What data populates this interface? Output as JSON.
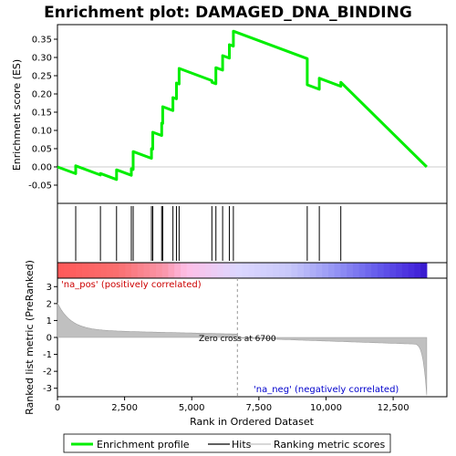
{
  "chart_data": {
    "type": "line",
    "title": "Enrichment plot: DAMAGED_DNA_BINDING",
    "xlabel": "Rank in Ordered Dataset",
    "ylabel_top": "Enrichment score (ES)",
    "ylabel_bottom": "Ranked list metric (PreRanked)",
    "xlim": [
      0,
      14500
    ],
    "es_ylim": [
      -0.1,
      0.39
    ],
    "metric_ylim": [
      -3.5,
      3.5
    ],
    "x_ticks": [
      0,
      2500,
      5000,
      7500,
      10000,
      12500
    ],
    "x_tick_labels": [
      "0",
      "2,500",
      "5,000",
      "7,500",
      "10,000",
      "12,500"
    ],
    "es_ticks": [
      -0.05,
      0.0,
      0.05,
      0.1,
      0.15,
      0.2,
      0.25,
      0.3,
      0.35
    ],
    "es_tick_labels": [
      "-0.05",
      "0.00",
      "0.05",
      "0.10",
      "0.15",
      "0.20",
      "0.25",
      "0.30",
      "0.35"
    ],
    "metric_ticks": [
      -3,
      -2,
      -1,
      0,
      1,
      2,
      3
    ],
    "metric_tick_labels": [
      "-3",
      "-2",
      "-1",
      "0",
      "1",
      "2",
      "3"
    ],
    "n_genes": 13750,
    "zero_cross_rank": 6700,
    "zero_cross_label": "Zero cross at 6700",
    "pos_label": "'na_pos' (positively correlated)",
    "neg_label": "'na_neg' (negatively correlated)",
    "hits": [
      680,
      1600,
      2200,
      2750,
      2820,
      3500,
      3550,
      3880,
      3920,
      4300,
      4430,
      4530,
      5750,
      5900,
      6150,
      6400,
      6550,
      9300,
      9750,
      10550
    ],
    "hit_es": [
      0.003,
      -0.018,
      -0.008,
      -0.005,
      0.042,
      0.05,
      0.095,
      0.12,
      0.165,
      0.19,
      0.23,
      0.27,
      0.232,
      0.272,
      0.305,
      0.335,
      0.372,
      0.225,
      0.243,
      0.232
    ],
    "es_colors": {
      "line": "#00ee00",
      "hits": "#000000",
      "zero_cross": "#999999"
    },
    "legend": [
      "Enrichment profile",
      "Hits",
      "Ranking metric scores"
    ]
  }
}
